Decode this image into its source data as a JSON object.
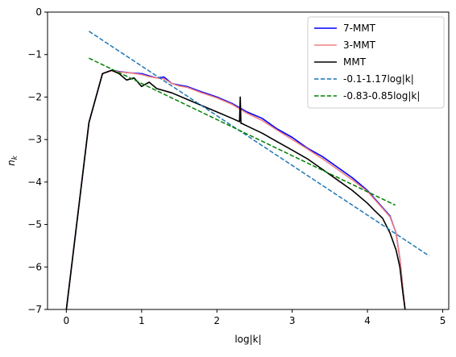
{
  "chart_data": {
    "type": "line",
    "xlabel": "log|k|",
    "ylabel": "n_k",
    "xlim": [
      -0.25,
      5.08
    ],
    "ylim": [
      -7,
      0
    ],
    "xticks": [
      0,
      1,
      2,
      3,
      4,
      5
    ],
    "yticks": [
      0,
      -1,
      -2,
      -3,
      -4,
      -5,
      -6,
      -7
    ],
    "grid": false,
    "legend_position": "top-right",
    "series": [
      {
        "name": "7-MMT",
        "color": "#0000ff",
        "style": "solid",
        "x": [
          0,
          0.3,
          0.48,
          0.6,
          0.7,
          0.85,
          1.0,
          1.1,
          1.2,
          1.3,
          1.4,
          1.5,
          1.6,
          1.8,
          2.0,
          2.2,
          2.4,
          2.6,
          2.8,
          3.0,
          3.2,
          3.4,
          3.6,
          3.8,
          4.0,
          4.1,
          4.2,
          4.3,
          4.38,
          4.43,
          4.47,
          4.5
        ],
        "y": [
          -7,
          -2.6,
          -1.45,
          -1.37,
          -1.4,
          -1.43,
          -1.45,
          -1.5,
          -1.55,
          -1.53,
          -1.68,
          -1.72,
          -1.75,
          -1.88,
          -2.0,
          -2.15,
          -2.35,
          -2.5,
          -2.75,
          -2.95,
          -3.2,
          -3.4,
          -3.65,
          -3.9,
          -4.2,
          -4.4,
          -4.6,
          -4.8,
          -5.2,
          -5.8,
          -6.5,
          -7
        ]
      },
      {
        "name": "3-MMT",
        "color": "#f08080",
        "style": "solid",
        "x": [
          0,
          0.3,
          0.48,
          0.6,
          0.7,
          0.85,
          1.0,
          1.1,
          1.2,
          1.3,
          1.4,
          1.5,
          1.6,
          1.8,
          2.0,
          2.2,
          2.4,
          2.6,
          2.8,
          3.0,
          3.2,
          3.4,
          3.6,
          3.8,
          4.0,
          4.1,
          4.2,
          4.3,
          4.38,
          4.43,
          4.47,
          4.5
        ],
        "y": [
          -7,
          -2.6,
          -1.45,
          -1.38,
          -1.41,
          -1.43,
          -1.47,
          -1.52,
          -1.55,
          -1.57,
          -1.68,
          -1.74,
          -1.77,
          -1.9,
          -2.02,
          -2.17,
          -2.38,
          -2.55,
          -2.78,
          -3.0,
          -3.22,
          -3.45,
          -3.7,
          -3.95,
          -4.22,
          -4.42,
          -4.62,
          -4.82,
          -5.2,
          -5.8,
          -6.5,
          -7
        ]
      },
      {
        "name": "MMT",
        "color": "#000000",
        "style": "solid",
        "x": [
          0,
          0.3,
          0.48,
          0.6,
          0.7,
          0.8,
          0.9,
          1.0,
          1.1,
          1.2,
          1.4,
          1.6,
          1.8,
          2.0,
          2.2,
          2.3,
          2.31,
          2.32,
          2.33,
          2.4,
          2.6,
          2.8,
          3.0,
          3.2,
          3.4,
          3.6,
          3.8,
          4.0,
          4.1,
          4.2,
          4.3,
          4.38,
          4.43,
          4.47,
          4.5
        ],
        "y": [
          -7,
          -2.6,
          -1.45,
          -1.37,
          -1.45,
          -1.6,
          -1.55,
          -1.75,
          -1.65,
          -1.8,
          -1.9,
          -2.05,
          -2.2,
          -2.35,
          -2.5,
          -2.58,
          -2.0,
          -2.62,
          -2.62,
          -2.68,
          -2.85,
          -3.05,
          -3.25,
          -3.45,
          -3.7,
          -3.95,
          -4.2,
          -4.5,
          -4.68,
          -4.85,
          -5.2,
          -5.6,
          -6.0,
          -6.6,
          -7
        ]
      },
      {
        "name": "-0.1-1.17log|k|",
        "color": "#1f77b4",
        "style": "dashed",
        "x": [
          0.3,
          4.82
        ],
        "y": [
          -0.451,
          -5.739
        ]
      },
      {
        "name": "-0.83-0.85log|k|",
        "color": "#008000",
        "style": "dashed",
        "x": [
          0.3,
          4.37
        ],
        "y": [
          -1.085,
          -4.545
        ]
      }
    ]
  }
}
